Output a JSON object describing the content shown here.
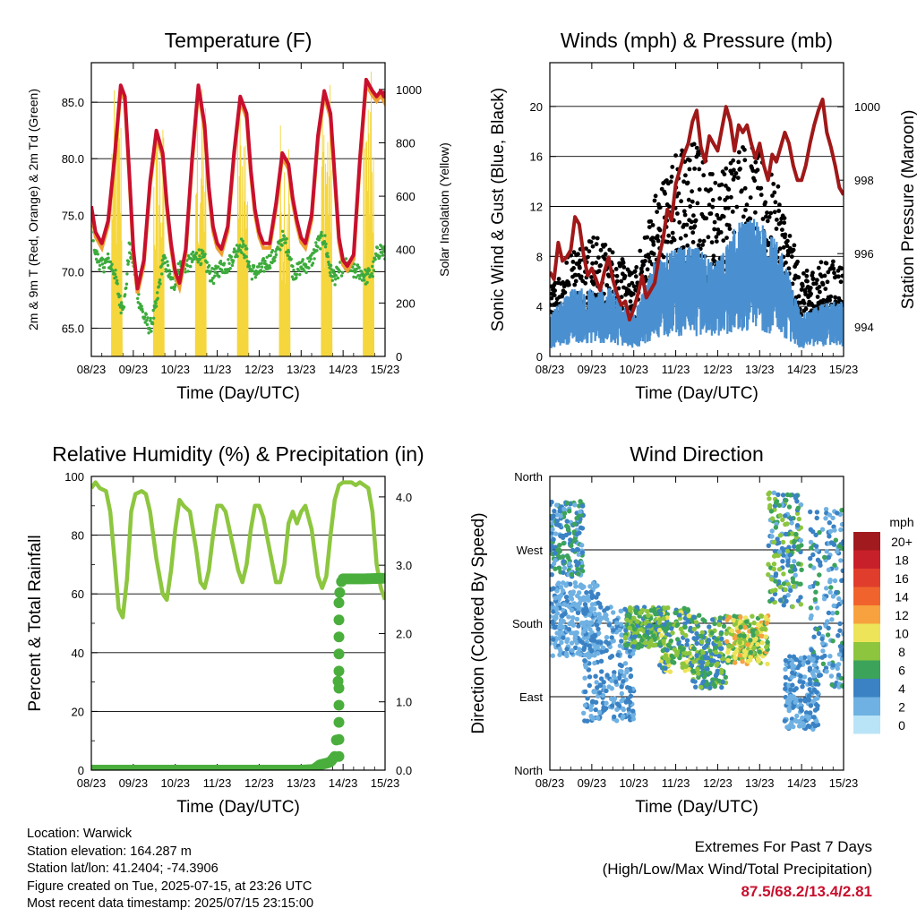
{
  "colors": {
    "temp2m": "#c8102e",
    "temp9m": "#f0a030",
    "dewpoint": "#3cab3c",
    "solar": "#f5d63d",
    "wind": "#4a90d0",
    "gust": "#000000",
    "pressure": "#a01818",
    "rh": "#8dc63f",
    "precip": "#4aae3c",
    "extremes": "#c8102e"
  },
  "chart_data": [
    {
      "id": "temperature",
      "type": "line",
      "title": "Temperature (F)",
      "xlabel": "Time (Day/UTC)",
      "ylabel_left": "2m & 9m T (Red, Orange) & 2m Td (Green)",
      "ylabel_right": "Solar Insolation (Yellow)",
      "x_ticks": [
        "08/23",
        "09/23",
        "10/23",
        "11/23",
        "12/23",
        "13/23",
        "14/23",
        "15/23"
      ],
      "ylim": [
        62.5,
        88.5
      ],
      "y_ticks": [
        65.0,
        70.0,
        75.0,
        80.0,
        85.0
      ],
      "y_tick_labels": [
        "65.0",
        "70.0",
        "75.0",
        "80.0",
        "85.0"
      ],
      "y2lim": [
        0,
        1100
      ],
      "y2_ticks": [
        0,
        200,
        400,
        600,
        800,
        1000
      ],
      "y2_tick_labels": [
        "0",
        "200",
        "400",
        "600",
        "800",
        "1000"
      ],
      "grid": true,
      "series": [
        {
          "key": "t2m",
          "x": [
            0,
            0.1,
            0.25,
            0.4,
            0.55,
            0.7,
            0.8,
            0.9,
            1.0,
            1.1,
            1.25,
            1.4,
            1.55,
            1.7,
            1.8,
            1.9,
            2.0,
            2.1,
            2.25,
            2.4,
            2.55,
            2.7,
            2.8,
            2.9,
            3.0,
            3.1,
            3.25,
            3.4,
            3.55,
            3.7,
            3.8,
            3.9,
            4.0,
            4.1,
            4.25,
            4.4,
            4.55,
            4.7,
            4.8,
            4.9,
            5.0,
            5.1,
            5.25,
            5.4,
            5.55,
            5.7,
            5.8,
            5.9,
            6.0,
            6.1,
            6.25,
            6.4,
            6.55,
            6.7,
            6.8,
            6.9,
            6.97,
            7.0
          ],
          "y": [
            75.8,
            73.5,
            72.5,
            74.5,
            80.0,
            86.5,
            85.5,
            79.0,
            72.0,
            68.5,
            71.0,
            78.0,
            82.5,
            80.5,
            76.0,
            72.5,
            70.0,
            69.0,
            72.0,
            80.0,
            86.5,
            83.0,
            77.5,
            74.0,
            72.5,
            72.0,
            74.0,
            80.5,
            85.5,
            84.0,
            79.0,
            75.5,
            73.5,
            72.5,
            72.5,
            76.0,
            80.5,
            79.5,
            76.5,
            74.5,
            73.0,
            72.5,
            75.0,
            82.0,
            86.0,
            84.0,
            78.5,
            73.0,
            71.0,
            70.5,
            71.5,
            80.0,
            87.0,
            86.0,
            85.5,
            86.0,
            85.5,
            86.0
          ]
        },
        {
          "key": "td2m",
          "x": [
            0,
            0.1,
            0.25,
            0.4,
            0.55,
            0.7,
            0.8,
            0.9,
            1.0,
            1.1,
            1.25,
            1.4,
            1.55,
            1.7,
            1.8,
            1.9,
            2.0,
            2.1,
            2.25,
            2.4,
            2.55,
            2.7,
            2.8,
            2.9,
            3.0,
            3.1,
            3.25,
            3.4,
            3.55,
            3.7,
            3.8,
            3.9,
            4.0,
            4.1,
            4.25,
            4.4,
            4.55,
            4.7,
            4.8,
            4.9,
            5.0,
            5.1,
            5.25,
            5.4,
            5.55,
            5.7,
            5.8,
            5.9,
            6.0,
            6.1,
            6.25,
            6.4,
            6.55,
            6.7,
            6.8,
            6.9,
            7.0
          ],
          "y": [
            75.0,
            71.5,
            70.5,
            71.0,
            70.0,
            67.0,
            67.5,
            72.0,
            71.0,
            68.0,
            66.0,
            65.0,
            67.0,
            71.0,
            70.5,
            69.0,
            69.0,
            70.5,
            70.5,
            71.0,
            71.5,
            71.0,
            70.0,
            69.5,
            70.0,
            70.5,
            70.5,
            71.5,
            72.5,
            71.5,
            70.0,
            70.0,
            70.0,
            70.5,
            71.0,
            71.5,
            73.0,
            72.0,
            70.0,
            70.0,
            70.5,
            70.5,
            71.0,
            72.5,
            73.0,
            70.0,
            69.5,
            70.0,
            70.5,
            70.5,
            70.0,
            70.0,
            69.5,
            70.0,
            71.5,
            72.0,
            71.5
          ]
        },
        {
          "key": "solar",
          "x": [
            0,
            0.2,
            0.5,
            0.62,
            0.72,
            0.85,
            1.0,
            1.2,
            1.5,
            1.62,
            1.72,
            1.85,
            2.0,
            2.2,
            2.5,
            2.62,
            2.72,
            2.85,
            3.0,
            3.2,
            3.5,
            3.62,
            3.72,
            3.85,
            4.0,
            4.2,
            4.5,
            4.62,
            4.72,
            4.85,
            5.0,
            5.2,
            5.5,
            5.62,
            5.72,
            5.85,
            6.0,
            6.2,
            6.5,
            6.62,
            6.72,
            6.85,
            7.0
          ],
          "y": [
            0,
            0,
            40,
            600,
            1000,
            300,
            0,
            0,
            40,
            450,
            900,
            200,
            0,
            0,
            40,
            700,
            1020,
            300,
            0,
            0,
            40,
            650,
            1000,
            320,
            0,
            0,
            40,
            600,
            900,
            300,
            0,
            0,
            40,
            700,
            1050,
            350,
            0,
            0,
            40,
            800,
            1070,
            500,
            0
          ]
        }
      ]
    },
    {
      "id": "winds",
      "type": "scatter",
      "title": "Winds (mph) & Pressure (mb)",
      "xlabel": "Time (Day/UTC)",
      "ylabel_left": "Sonic Wind & Gust (Blue, Black)",
      "ylabel_right": "Station Pressure (Maroon)",
      "x_ticks": [
        "08/23",
        "09/23",
        "10/23",
        "11/23",
        "12/23",
        "13/23",
        "14/23",
        "15/23"
      ],
      "ylim": [
        0,
        23.5
      ],
      "y_ticks": [
        0,
        4,
        8,
        12,
        16,
        20
      ],
      "y_tick_labels": [
        "0",
        "4",
        "8",
        "12",
        "16",
        "20"
      ],
      "y2lim": [
        993.2,
        1001.2
      ],
      "y2_ticks": [
        994,
        996,
        998,
        1000
      ],
      "y2_tick_labels": [
        "994",
        "996",
        "998",
        "1000"
      ],
      "grid": true,
      "series": [
        {
          "key": "wind_env",
          "x": [
            0,
            0.5,
            1.0,
            1.5,
            2.0,
            2.5,
            3.0,
            3.5,
            4.0,
            4.5,
            5.0,
            5.5,
            6.0,
            6.5,
            7.0
          ],
          "y": [
            3,
            5,
            5,
            5,
            3,
            7,
            8,
            8,
            7,
            10,
            10,
            8,
            3,
            4,
            4
          ]
        },
        {
          "key": "gust_env",
          "x": [
            0,
            0.5,
            1.0,
            1.5,
            2.0,
            2.5,
            3.0,
            3.5,
            4.0,
            4.5,
            5.0,
            5.5,
            6.0,
            6.5,
            7.0
          ],
          "y": [
            5,
            8,
            9,
            8,
            6,
            12,
            15,
            16,
            13,
            16,
            15,
            12,
            6,
            7,
            7
          ]
        },
        {
          "key": "pressure",
          "x": [
            0,
            0.1,
            0.2,
            0.3,
            0.4,
            0.5,
            0.6,
            0.7,
            0.8,
            0.9,
            1.0,
            1.1,
            1.2,
            1.3,
            1.4,
            1.5,
            1.6,
            1.7,
            1.8,
            1.9,
            2.0,
            2.1,
            2.2,
            2.3,
            2.4,
            2.5,
            2.6,
            2.7,
            2.8,
            2.9,
            3.0,
            3.1,
            3.2,
            3.3,
            3.4,
            3.5,
            3.6,
            3.7,
            3.8,
            3.9,
            4.0,
            4.1,
            4.2,
            4.3,
            4.4,
            4.5,
            4.6,
            4.7,
            4.8,
            4.9,
            5.0,
            5.1,
            5.2,
            5.3,
            5.4,
            5.5,
            5.6,
            5.7,
            5.8,
            5.9,
            6.0,
            6.1,
            6.2,
            6.3,
            6.4,
            6.5,
            6.6,
            6.7,
            6.8,
            6.9,
            7.0
          ],
          "y": [
            995.5,
            995.3,
            996.3,
            995.8,
            995.9,
            996.1,
            997.0,
            996.8,
            996.0,
            995.4,
            995.6,
            995.3,
            995.0,
            995.5,
            995.9,
            995.3,
            994.9,
            994.6,
            994.7,
            994.2,
            994.5,
            994.9,
            995.4,
            994.8,
            995.0,
            995.2,
            995.9,
            996.4,
            997.2,
            996.9,
            997.9,
            998.3,
            998.7,
            999.0,
            999.6,
            999.9,
            998.9,
            998.5,
            999.2,
            999.0,
            998.8,
            999.4,
            1000.0,
            999.6,
            998.8,
            999.5,
            999.3,
            999.5,
            999.0,
            998.6,
            999.0,
            998.4,
            998.0,
            998.7,
            998.5,
            998.9,
            999.3,
            999.0,
            998.4,
            998.0,
            998.0,
            998.4,
            999.0,
            999.5,
            999.9,
            1000.2,
            999.3,
            998.9,
            998.4,
            997.8,
            997.6
          ]
        }
      ]
    },
    {
      "id": "rh_precip",
      "type": "line",
      "title": "Relative Humidity (%) & Precipitation (in)",
      "xlabel": "Time (Day/UTC)",
      "ylabel_left": "Percent & Total Rainfall",
      "x_ticks": [
        "08/23",
        "09/23",
        "10/23",
        "11/23",
        "12/23",
        "13/23",
        "14/23",
        "15/23"
      ],
      "ylim": [
        0,
        100
      ],
      "y_ticks": [
        0,
        20,
        40,
        60,
        80,
        100
      ],
      "y_tick_labels": [
        "0",
        "20",
        "40",
        "60",
        "80",
        "100"
      ],
      "y2lim": [
        0,
        4.3
      ],
      "y2_ticks": [
        0,
        1,
        2,
        3,
        4
      ],
      "y2_tick_labels": [
        "0.0",
        "1.0",
        "2.0",
        "3.0",
        "4.0"
      ],
      "grid": true,
      "series": [
        {
          "key": "rh",
          "x": [
            0,
            0.1,
            0.2,
            0.35,
            0.45,
            0.55,
            0.65,
            0.75,
            0.85,
            0.95,
            1.05,
            1.2,
            1.3,
            1.4,
            1.55,
            1.7,
            1.8,
            1.9,
            2.0,
            2.1,
            2.2,
            2.35,
            2.5,
            2.6,
            2.7,
            2.8,
            2.9,
            3.0,
            3.1,
            3.2,
            3.35,
            3.5,
            3.6,
            3.7,
            3.8,
            3.9,
            4.0,
            4.1,
            4.25,
            4.4,
            4.5,
            4.6,
            4.7,
            4.8,
            4.9,
            5.0,
            5.1,
            5.25,
            5.4,
            5.5,
            5.6,
            5.7,
            5.8,
            5.9,
            6.0,
            6.1,
            6.2,
            6.3,
            6.4,
            6.5,
            6.6,
            6.7,
            6.8,
            6.9,
            7.0
          ],
          "y": [
            96,
            98,
            96,
            95,
            88,
            72,
            55,
            52,
            65,
            88,
            94,
            95,
            94,
            88,
            72,
            60,
            58,
            68,
            82,
            92,
            90,
            88,
            75,
            64,
            62,
            68,
            80,
            90,
            90,
            88,
            78,
            68,
            64,
            70,
            82,
            90,
            90,
            86,
            75,
            64,
            64,
            70,
            84,
            88,
            84,
            88,
            90,
            82,
            66,
            62,
            66,
            80,
            92,
            97,
            98,
            98,
            98,
            97,
            98,
            97,
            96,
            88,
            70,
            62,
            58
          ]
        },
        {
          "key": "precip",
          "x": [
            0,
            1,
            2,
            3,
            4,
            5,
            5.3,
            5.45,
            5.6,
            5.7,
            5.8,
            5.85,
            5.88,
            5.9,
            5.92,
            5.95,
            6.0,
            6.2,
            6.5,
            7.0
          ],
          "y": [
            0,
            0,
            0,
            0,
            0,
            0,
            0.01,
            0.08,
            0.1,
            0.12,
            0.2,
            0.5,
            1.3,
            2.2,
            2.6,
            2.75,
            2.8,
            2.8,
            2.8,
            2.81
          ]
        }
      ]
    },
    {
      "id": "wind_direction",
      "type": "scatter",
      "title": "Wind Direction",
      "xlabel": "Time (Day/UTC)",
      "ylabel_left": "Direction (Colored By Speed)",
      "x_ticks": [
        "08/23",
        "09/23",
        "10/23",
        "11/23",
        "12/23",
        "13/23",
        "14/23",
        "15/23"
      ],
      "y_ticks": [
        0,
        90,
        180,
        270,
        360
      ],
      "y_tick_labels": [
        "North",
        "East",
        "South",
        "West",
        "North"
      ],
      "ylim": [
        0,
        360
      ],
      "grid": true,
      "legend": {
        "title": "mph",
        "placement": "right",
        "labels": [
          "20+",
          "18",
          "16",
          "14",
          "12",
          "10",
          "8",
          "6",
          "4",
          "2",
          "0"
        ],
        "colors": [
          "#a11a1d",
          "#c8202a",
          "#e03d2c",
          "#f0632d",
          "#f7a23e",
          "#ede45a",
          "#8dc53e",
          "#3ca35b",
          "#3a82c4",
          "#6fb1e2",
          "#b9e3f7"
        ]
      },
      "bands": [
        {
          "x": [
            0,
            0.8
          ],
          "y": [
            235,
            330
          ],
          "speed": [
            2,
            7
          ]
        },
        {
          "x": [
            0,
            1.2
          ],
          "y": [
            140,
            230
          ],
          "speed": [
            1,
            4
          ]
        },
        {
          "x": [
            0.8,
            2.0
          ],
          "y": [
            60,
            200
          ],
          "speed": [
            1,
            5
          ]
        },
        {
          "x": [
            1.8,
            2.6
          ],
          "y": [
            150,
            200
          ],
          "speed": [
            4,
            9
          ]
        },
        {
          "x": [
            2.6,
            3.4
          ],
          "y": [
            120,
            200
          ],
          "speed": [
            3,
            10
          ]
        },
        {
          "x": [
            3.4,
            4.2
          ],
          "y": [
            100,
            190
          ],
          "speed": [
            3,
            9
          ]
        },
        {
          "x": [
            4.2,
            5.2
          ],
          "y": [
            130,
            190
          ],
          "speed": [
            5,
            12
          ]
        },
        {
          "x": [
            5.2,
            6.0
          ],
          "y": [
            200,
            340
          ],
          "speed": [
            2,
            9
          ]
        },
        {
          "x": [
            5.6,
            6.4
          ],
          "y": [
            50,
            140
          ],
          "speed": [
            1,
            5
          ]
        },
        {
          "x": [
            6.2,
            7.0
          ],
          "y": [
            100,
            320
          ],
          "speed": [
            1,
            6
          ]
        }
      ]
    }
  ],
  "info": {
    "location": "Location: Warwick",
    "elevation": "Station elevation: 164.287 m",
    "latlon": "Station lat/lon: 41.2404; -74.3906",
    "created": "Figure created on Tue, 2025-07-15, at 23:26 UTC",
    "recent": "Most recent data timestamp: 2025/07/15 23:15:00"
  },
  "extremes": {
    "title": "Extremes For Past 7 Days",
    "subtitle": "(High/Low/Max Wind/Total Precipitation)",
    "values": "87.5/68.2/13.4/2.81"
  }
}
